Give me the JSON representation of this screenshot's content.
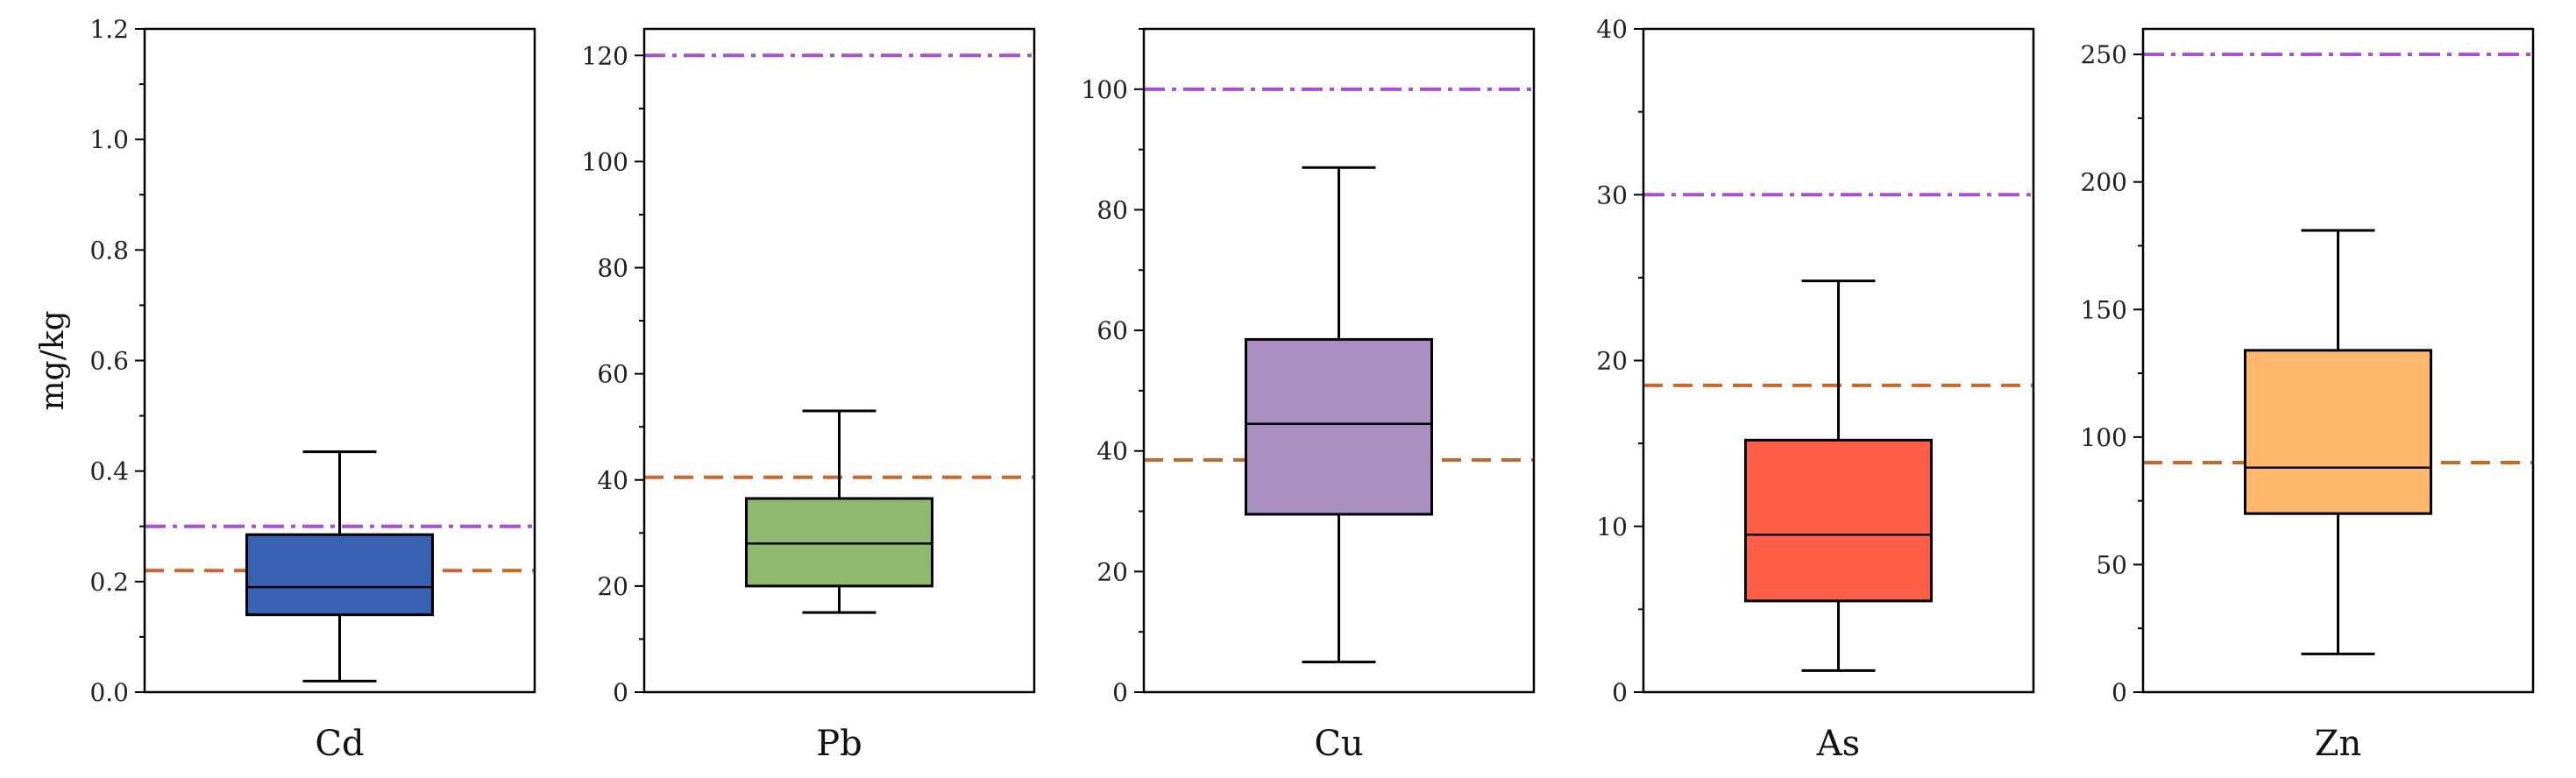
{
  "chart_data": [
    {
      "type": "box",
      "category": "Cd",
      "ylabel": "mg/kg",
      "ylim": [
        0,
        1.2
      ],
      "yticks": [
        "0.0",
        "0.2",
        "0.4",
        "0.6",
        "0.8",
        "1.0",
        "1.2"
      ],
      "minor_ticks": true,
      "box": {
        "whisker_low": 0.02,
        "q1": 0.14,
        "median": 0.19,
        "q3": 0.285,
        "whisker_high": 0.435
      },
      "color": "#3a62b2",
      "reference_lines": {
        "dash": 0.22,
        "dashdot": 0.3
      }
    },
    {
      "type": "box",
      "category": "Pb",
      "ylabel": "",
      "ylim": [
        0,
        125
      ],
      "yticks": [
        "0",
        "20",
        "40",
        "60",
        "80",
        "100",
        "120"
      ],
      "minor_ticks": true,
      "box": {
        "whisker_low": 15,
        "q1": 20,
        "median": 28,
        "q3": 36.5,
        "whisker_high": 53
      },
      "color": "#8fba6e",
      "reference_lines": {
        "dash": 40.5,
        "dashdot": 120
      }
    },
    {
      "type": "box",
      "category": "Cu",
      "ylabel": "",
      "ylim": [
        0,
        110
      ],
      "yticks": [
        "0",
        "20",
        "40",
        "60",
        "80",
        "100"
      ],
      "minor_ticks": true,
      "box": {
        "whisker_low": 5,
        "q1": 29.5,
        "median": 44.5,
        "q3": 58.5,
        "whisker_high": 87
      },
      "color": "#a98fc0",
      "reference_lines": {
        "dash": 38.5,
        "dashdot": 100
      }
    },
    {
      "type": "box",
      "category": "As",
      "ylabel": "",
      "ylim": [
        0,
        40
      ],
      "yticks": [
        "0",
        "10",
        "20",
        "30",
        "40"
      ],
      "minor_ticks": true,
      "box": {
        "whisker_low": 1.3,
        "q1": 5.5,
        "median": 9.5,
        "q3": 15.2,
        "whisker_high": 24.8
      },
      "color": "#fe5f46",
      "reference_lines": {
        "dash": 18.5,
        "dashdot": 30
      }
    },
    {
      "type": "box",
      "category": "Zn",
      "ylabel": "",
      "ylim": [
        0,
        260
      ],
      "yticks": [
        "0",
        "50",
        "100",
        "150",
        "200",
        "250"
      ],
      "minor_ticks": true,
      "box": {
        "whisker_low": 15,
        "q1": 70,
        "median": 88,
        "q3": 134,
        "whisker_high": 181
      },
      "color": "#ffb86b",
      "reference_lines": {
        "dash": 90,
        "dashdot": 250
      }
    }
  ],
  "colors": {
    "dash_line": "#c8672a",
    "dashdot_line": "#a94fd1",
    "axis": "#000000"
  }
}
